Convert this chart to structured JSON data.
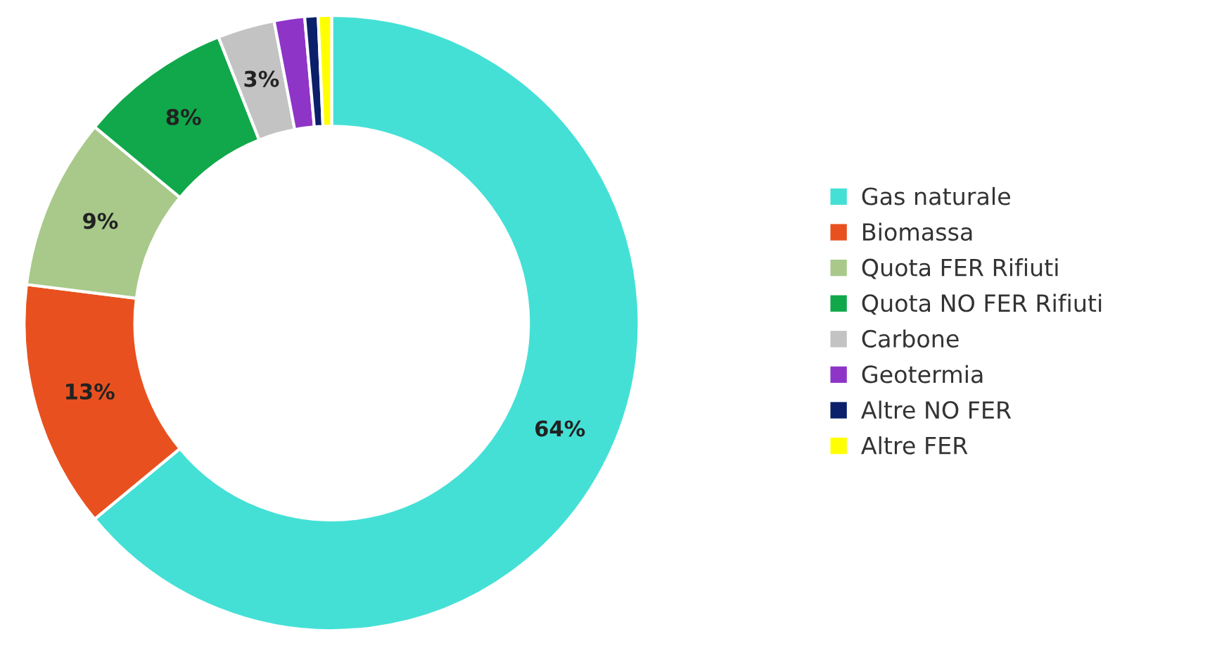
{
  "chart_data": {
    "type": "donut",
    "categories": [
      "Gas naturale",
      "Biomassa",
      "Quota FER Rifiuti",
      "Quota NO FER Rifiuti",
      "Carbone",
      "Geotermia",
      "Altre NO FER",
      "Altre FER"
    ],
    "values": [
      64,
      13,
      9,
      8,
      3,
      1.6,
      0.7,
      0.7
    ],
    "colors": [
      "#44e0d6",
      "#e8511f",
      "#a8c98a",
      "#10a84a",
      "#c3c3c3",
      "#8e35c8",
      "#0b1f6b",
      "#ffff00"
    ],
    "value_labels": [
      "64%",
      "13%",
      "9%",
      "8%",
      "3%",
      null,
      null,
      null
    ],
    "legend": "right"
  }
}
